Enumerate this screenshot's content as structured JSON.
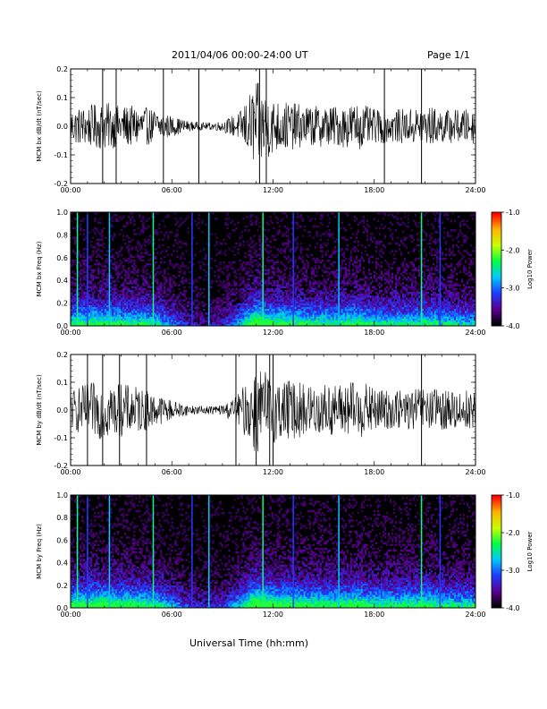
{
  "header": {
    "title": "2011/04/06  00:00-24:00 UT",
    "page": "Page 1/1"
  },
  "footer": {
    "xlabel": "Universal Time (hh:mm)"
  },
  "colors": {
    "trace": "#000000",
    "spec_bg": "#000000",
    "colorbar": [
      "#000000",
      "#5a0090",
      "#1e3cff",
      "#00c8ff",
      "#00ff40",
      "#c8ff00",
      "#ffb400",
      "#ff0000"
    ]
  },
  "chart_data": [
    {
      "type": "line",
      "ylabel": "MCM bx dB/dt (nT/sec)",
      "xlim": [
        "00:00",
        "24:00"
      ],
      "ylim": [
        -0.2,
        0.2
      ],
      "x_ticks": [
        "00:00",
        "06:00",
        "12:00",
        "18:00",
        "24:00"
      ],
      "y_ticks": [
        "-0.2",
        "-0.1",
        "0.0",
        "0.1",
        "0.2"
      ],
      "envelope": {
        "hours": [
          0,
          1,
          2,
          3,
          4,
          5,
          6,
          7,
          8,
          9,
          10,
          11,
          12,
          13,
          14,
          15,
          16,
          17,
          18,
          19,
          20,
          21,
          22,
          23,
          24
        ],
        "amplitude": [
          0.05,
          0.06,
          0.07,
          0.06,
          0.06,
          0.05,
          0.03,
          0.015,
          0.01,
          0.015,
          0.04,
          0.13,
          0.08,
          0.07,
          0.06,
          0.06,
          0.06,
          0.07,
          0.05,
          0.05,
          0.05,
          0.06,
          0.05,
          0.05,
          0.05
        ]
      },
      "spikes_hours": [
        1.9,
        2.7,
        5.5,
        7.6,
        11.2,
        11.6,
        18.6,
        20.8
      ]
    },
    {
      "type": "heatmap",
      "ylabel": "MCM bx Freq (Hz)",
      "xlim": [
        "00:00",
        "24:00"
      ],
      "ylim": [
        0.0,
        1.0
      ],
      "x_ticks": [
        "00:00",
        "06:00",
        "12:00",
        "18:00",
        "24:00"
      ],
      "y_ticks": [
        "0.0",
        "0.2",
        "0.4",
        "0.6",
        "0.8",
        "1.0"
      ],
      "colorbar_label": "Log10 Power",
      "colorbar_ticks": [
        "-1.0",
        "-2.0",
        "-3.0",
        "-4.0"
      ],
      "colorbar_range": [
        -4.0,
        -1.0
      ],
      "activity_hours": [
        0,
        1,
        2,
        3,
        4,
        5,
        6,
        7,
        8,
        9,
        10,
        11,
        12,
        13,
        14,
        15,
        16,
        17,
        18,
        19,
        20,
        21,
        22,
        23,
        24
      ],
      "activity_level": [
        0.55,
        0.6,
        0.6,
        0.55,
        0.55,
        0.5,
        0.35,
        0.2,
        0.15,
        0.2,
        0.4,
        0.75,
        0.6,
        0.6,
        0.55,
        0.55,
        0.55,
        0.6,
        0.5,
        0.5,
        0.5,
        0.55,
        0.5,
        0.45,
        0.45
      ],
      "vertical_lines_hours": [
        0.4,
        1.0,
        2.3,
        4.9,
        7.2,
        8.2,
        11.4,
        13.2,
        15.9,
        20.8,
        21.9
      ]
    },
    {
      "type": "line",
      "ylabel": "MCM by dB/dt (nT/sec)",
      "xlim": [
        "00:00",
        "24:00"
      ],
      "ylim": [
        -0.2,
        0.2
      ],
      "x_ticks": [
        "00:00",
        "06:00",
        "12:00",
        "18:00",
        "24:00"
      ],
      "y_ticks": [
        "-0.2",
        "-0.1",
        "0.0",
        "0.1",
        "0.2"
      ],
      "envelope": {
        "hours": [
          0,
          1,
          2,
          3,
          4,
          5,
          6,
          7,
          8,
          9,
          10,
          11,
          12,
          13,
          14,
          15,
          16,
          17,
          18,
          19,
          20,
          21,
          22,
          23,
          24
        ],
        "amplitude": [
          0.06,
          0.08,
          0.09,
          0.08,
          0.07,
          0.05,
          0.03,
          0.015,
          0.012,
          0.015,
          0.05,
          0.14,
          0.1,
          0.09,
          0.08,
          0.08,
          0.08,
          0.09,
          0.07,
          0.06,
          0.06,
          0.07,
          0.06,
          0.06,
          0.06
        ]
      },
      "spikes_hours": [
        1.0,
        1.9,
        2.9,
        4.5,
        9.8,
        11.0,
        11.8,
        12.0,
        20.8
      ]
    },
    {
      "type": "heatmap",
      "ylabel": "MCM by Freq (Hz)",
      "xlim": [
        "00:00",
        "24:00"
      ],
      "ylim": [
        0.0,
        1.0
      ],
      "x_ticks": [
        "00:00",
        "06:00",
        "12:00",
        "18:00",
        "24:00"
      ],
      "y_ticks": [
        "0.0",
        "0.2",
        "0.4",
        "0.6",
        "0.8",
        "1.0"
      ],
      "colorbar_label": "Log10 Power",
      "colorbar_ticks": [
        "-1.0",
        "-2.0",
        "-3.0",
        "-4.0"
      ],
      "colorbar_range": [
        -4.0,
        -1.0
      ],
      "activity_hours": [
        0,
        1,
        2,
        3,
        4,
        5,
        6,
        7,
        8,
        9,
        10,
        11,
        12,
        13,
        14,
        15,
        16,
        17,
        18,
        19,
        20,
        21,
        22,
        23,
        24
      ],
      "activity_level": [
        0.6,
        0.65,
        0.65,
        0.6,
        0.6,
        0.55,
        0.4,
        0.25,
        0.2,
        0.25,
        0.45,
        0.8,
        0.65,
        0.65,
        0.6,
        0.6,
        0.6,
        0.65,
        0.55,
        0.55,
        0.55,
        0.6,
        0.55,
        0.5,
        0.5
      ],
      "vertical_lines_hours": [
        0.4,
        1.0,
        2.3,
        4.9,
        7.2,
        8.2,
        11.4,
        13.2,
        15.9,
        20.8,
        21.9
      ]
    }
  ]
}
